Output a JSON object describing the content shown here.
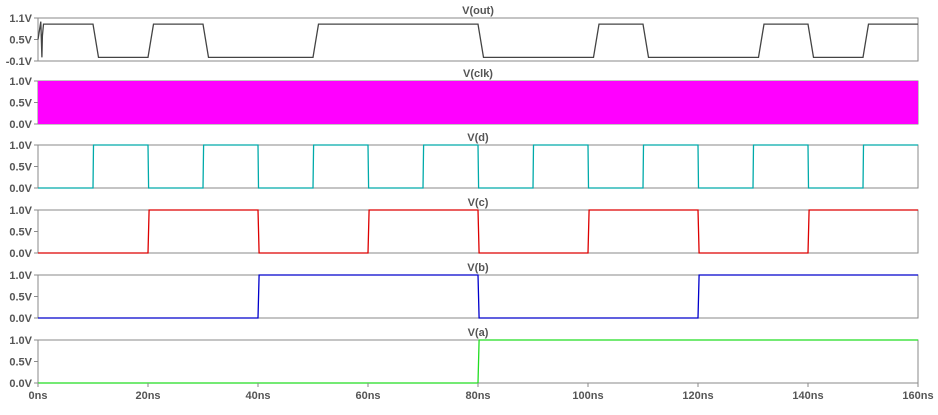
{
  "chart_data": {
    "type": "line",
    "x_unit": "ns",
    "x_ticks": [
      "0ns",
      "20ns",
      "40ns",
      "60ns",
      "80ns",
      "100ns",
      "120ns",
      "140ns",
      "160ns"
    ],
    "xlim": [
      0,
      160
    ],
    "grid": false,
    "panes": [
      {
        "id": "out",
        "title": "V(out)",
        "color": "#444444",
        "ylim": [
          -0.1,
          1.1
        ],
        "y_ticks": [
          "1.1V",
          "0.5V",
          "-0.1V"
        ],
        "y_tick_values": [
          1.1,
          0.5,
          -0.1
        ],
        "series": {
          "name": "V(out)",
          "x": [
            0,
            0.5,
            0.7,
            0.8,
            1,
            10,
            11,
            20,
            21,
            30,
            31,
            50,
            51,
            80,
            81,
            101,
            102,
            110,
            111,
            131,
            132,
            140,
            141,
            150,
            151,
            160
          ],
          "y": [
            0.5,
            1.0,
            0.0,
            0.6,
            0.93,
            0.93,
            0.0,
            0.0,
            0.93,
            0.93,
            0.0,
            0.0,
            0.93,
            0.93,
            0.0,
            0.0,
            0.93,
            0.93,
            0.0,
            0.0,
            0.93,
            0.93,
            0.0,
            0.0,
            0.93,
            0.93
          ]
        }
      },
      {
        "id": "clk",
        "title": "V(clk)",
        "color": "#ff00ff",
        "ylim": [
          0.0,
          1.0
        ],
        "y_ticks": [
          "1.0V",
          "0.5V",
          "0.0V"
        ],
        "y_tick_values": [
          1.0,
          0.5,
          0.0
        ],
        "series": {
          "name": "V(clk)",
          "x": [
            0,
            160
          ],
          "y": [
            0.0,
            1.0
          ],
          "fill_band": true
        }
      },
      {
        "id": "d",
        "title": "V(d)",
        "color": "#00aaaa",
        "ylim": [
          0.0,
          1.0
        ],
        "y_ticks": [
          "1.0V",
          "0.5V",
          "0.0V"
        ],
        "y_tick_values": [
          1.0,
          0.5,
          0.0
        ],
        "series": {
          "name": "V(d)",
          "x": [
            0,
            10,
            10.1,
            20,
            20.1,
            30,
            30.1,
            40,
            40.1,
            50,
            50.1,
            60,
            60.1,
            70,
            70.1,
            80,
            80.1,
            90,
            90.1,
            100,
            100.1,
            110,
            110.1,
            120,
            120.1,
            130,
            130.1,
            140,
            140.1,
            150,
            150.1,
            160
          ],
          "y": [
            0,
            0,
            1,
            1,
            0,
            0,
            1,
            1,
            0,
            0,
            1,
            1,
            0,
            0,
            1,
            1,
            0,
            0,
            1,
            1,
            0,
            0,
            1,
            1,
            0,
            0,
            1,
            1,
            0,
            0,
            1,
            1
          ]
        }
      },
      {
        "id": "c",
        "title": "V(c)",
        "color": "#dd0000",
        "ylim": [
          0.0,
          1.0
        ],
        "y_ticks": [
          "1.0V",
          "0.5V",
          "0.0V"
        ],
        "y_tick_values": [
          1.0,
          0.5,
          0.0
        ],
        "series": {
          "name": "V(c)",
          "x": [
            0,
            20,
            20.2,
            40,
            40.2,
            60,
            60.2,
            80,
            80.2,
            100,
            100.2,
            120,
            120.2,
            140,
            140.2,
            160
          ],
          "y": [
            0,
            0,
            1,
            1,
            0,
            0,
            1,
            1,
            0,
            0,
            1,
            1,
            0,
            0,
            1,
            1
          ]
        }
      },
      {
        "id": "b",
        "title": "V(b)",
        "color": "#0000cc",
        "ylim": [
          0.0,
          1.0
        ],
        "y_ticks": [
          "1.0V",
          "0.5V",
          "0.0V"
        ],
        "y_tick_values": [
          1.0,
          0.5,
          0.0
        ],
        "series": {
          "name": "V(b)",
          "x": [
            0,
            40,
            40.2,
            80,
            80.2,
            120,
            120.2,
            160
          ],
          "y": [
            0,
            0,
            1,
            1,
            0,
            0,
            1,
            1
          ]
        }
      },
      {
        "id": "a",
        "title": "V(a)",
        "color": "#22dd22",
        "ylim": [
          0.0,
          1.0
        ],
        "y_ticks": [
          "1.0V",
          "0.5V",
          "0.0V"
        ],
        "y_tick_values": [
          1.0,
          0.5,
          0.0
        ],
        "series": {
          "name": "V(a)",
          "x": [
            0,
            80,
            80.2,
            160
          ],
          "y": [
            0,
            0,
            1,
            1
          ]
        }
      }
    ]
  }
}
